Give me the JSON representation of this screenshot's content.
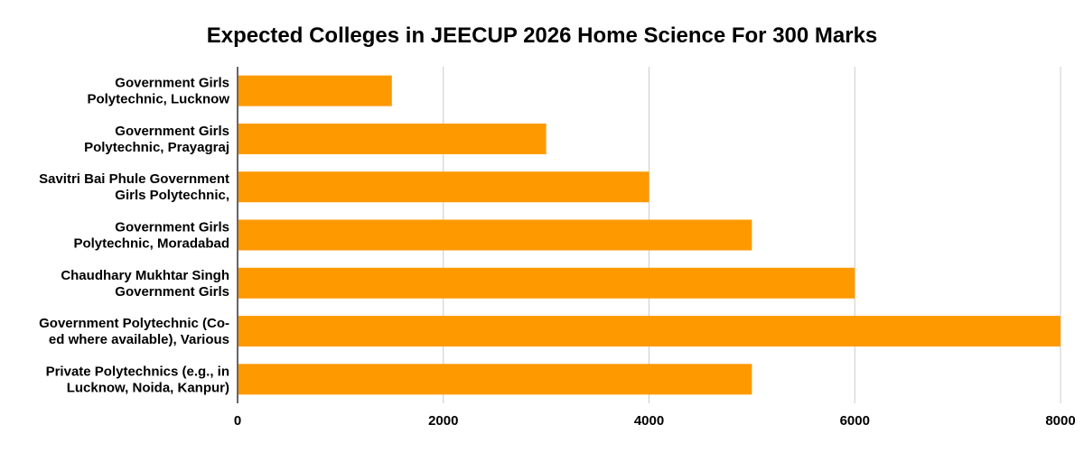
{
  "chart_data": {
    "type": "bar",
    "orientation": "horizontal",
    "title": "Expected Colleges in JEECUP 2026 Home Science For 300 Marks",
    "xlabel": "",
    "ylabel": "",
    "categories": [
      [
        "Government Girls",
        "Polytechnic, Lucknow"
      ],
      [
        "Government Girls",
        "Polytechnic, Prayagraj"
      ],
      [
        "Savitri Bai Phule Government",
        "Girls Polytechnic,"
      ],
      [
        "Government Girls",
        "Polytechnic, Moradabad"
      ],
      [
        "Chaudhary Mukhtar Singh",
        "Government Girls"
      ],
      [
        "Government Polytechnic (Co-",
        "ed where available), Various"
      ],
      [
        "Private Polytechnics (e.g., in",
        "Lucknow, Noida, Kanpur)"
      ]
    ],
    "values": [
      1500,
      3000,
      4000,
      5000,
      6000,
      8000,
      5000
    ],
    "xlim": [
      0,
      8000
    ],
    "xticks": [
      "0",
      "2000",
      "4000",
      "6000",
      "8000"
    ],
    "grid": true,
    "legend": "none",
    "colors": {
      "bar": "#FF9900",
      "grid": "#cccccc",
      "axis": "#333333"
    }
  }
}
